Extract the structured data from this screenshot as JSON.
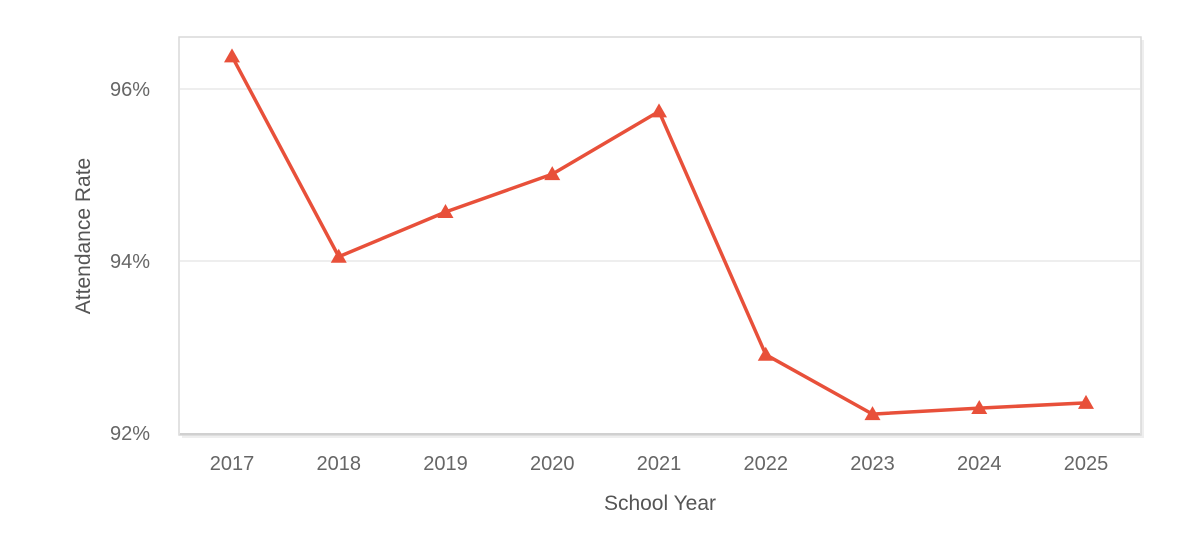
{
  "chart_data": {
    "type": "line",
    "title": "",
    "xlabel": "School Year",
    "ylabel": "Attendance Rate",
    "x": [
      "2017",
      "2018",
      "2019",
      "2020",
      "2021",
      "2022",
      "2023",
      "2024",
      "2025"
    ],
    "series": [
      {
        "values": [
          96.38,
          94.05,
          94.57,
          95.01,
          95.74,
          92.91,
          92.22,
          92.29,
          92.35
        ],
        "color": "#e8503a",
        "marker": "triangle"
      }
    ],
    "ylim": [
      92,
      96.6
    ],
    "yticks": [
      {
        "value": 92,
        "label": "92%"
      },
      {
        "value": 94,
        "label": "94%"
      },
      {
        "value": 96,
        "label": "96%"
      }
    ],
    "grid": true,
    "legend": "none",
    "colors": {
      "line": "#e8503a",
      "grid": "#e3e3e3",
      "frame": "#d9d9d9",
      "text": "#666666"
    }
  }
}
